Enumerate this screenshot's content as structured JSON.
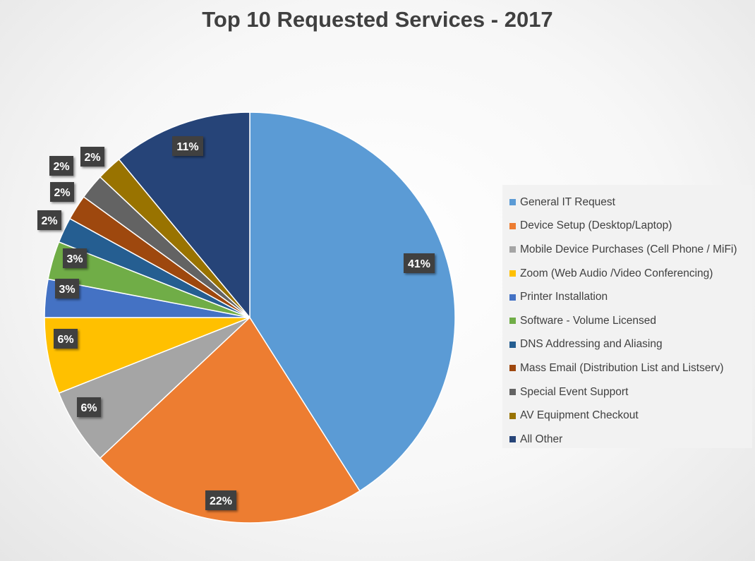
{
  "chart_data": {
    "type": "pie",
    "title": "Top 10 Requested Services - 2017",
    "legend_position": "right",
    "slices": [
      {
        "label": "General IT Request",
        "value": 41,
        "data_label": "41%",
        "color": "#5B9BD5"
      },
      {
        "label": "Device Setup (Desktop/Laptop)",
        "value": 22,
        "data_label": "22%",
        "color": "#ED7D31"
      },
      {
        "label": "Mobile Device Purchases (Cell Phone / MiFi)",
        "value": 6,
        "data_label": "6%",
        "color": "#A5A5A5"
      },
      {
        "label": "Zoom (Web Audio /Video Conferencing)",
        "value": 6,
        "data_label": "6%",
        "color": "#FFC000"
      },
      {
        "label": "Printer Installation",
        "value": 3,
        "data_label": "3%",
        "color": "#4472C4"
      },
      {
        "label": "Software - Volume Licensed",
        "value": 3,
        "data_label": "3%",
        "color": "#70AD47"
      },
      {
        "label": "DNS Addressing and Aliasing",
        "value": 2,
        "data_label": "2%",
        "color": "#255E91"
      },
      {
        "label": "Mass Email (Distribution List and Listserv)",
        "value": 2,
        "data_label": "2%",
        "color": "#9E480E"
      },
      {
        "label": "Special Event Support",
        "value": 2,
        "data_label": "2%",
        "color": "#636363"
      },
      {
        "label": "AV Equipment Checkout",
        "value": 2,
        "data_label": "2%",
        "color": "#997300"
      },
      {
        "label": "All Other",
        "value": 11,
        "data_label": "11%",
        "color": "#264478"
      }
    ]
  }
}
